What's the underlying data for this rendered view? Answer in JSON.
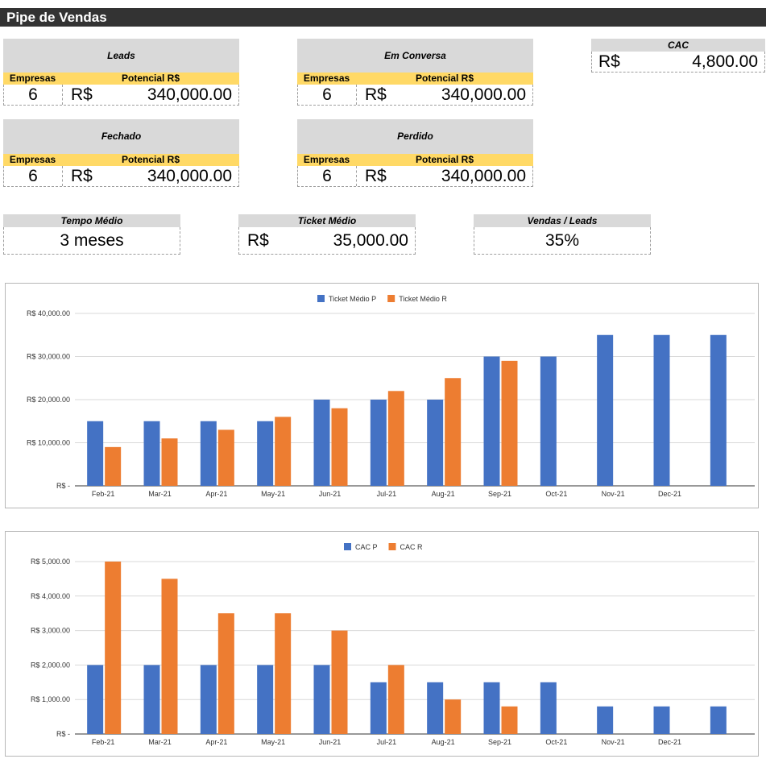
{
  "title": "Pipe de Vendas",
  "labels": {
    "empresas": "Empresas",
    "potencial": "Potencial R$"
  },
  "cards": [
    {
      "title": "Leads",
      "count": "6",
      "currency": "R$",
      "amount": "340,000.00"
    },
    {
      "title": "Em Conversa",
      "count": "6",
      "currency": "R$",
      "amount": "340,000.00"
    },
    {
      "title": "Fechado",
      "count": "6",
      "currency": "R$",
      "amount": "340,000.00"
    },
    {
      "title": "Perdido",
      "count": "6",
      "currency": "R$",
      "amount": "340,000.00"
    }
  ],
  "cac": {
    "title": "CAC",
    "currency": "R$",
    "amount": "4,800.00"
  },
  "kpis": {
    "tempo": {
      "title": "Tempo Médio",
      "value": "3 meses"
    },
    "ticket": {
      "title": "Ticket Médio",
      "currency": "R$",
      "amount": "35,000.00"
    },
    "vendas": {
      "title": "Vendas / Leads",
      "value": "35%"
    }
  },
  "colors": {
    "series_p": "#4472c4",
    "series_r": "#ed7d31",
    "title_bg": "#333333",
    "header_bg": "#d9d9d9",
    "sub_bg": "#ffd966"
  },
  "chart_data": [
    {
      "type": "bar",
      "categories": [
        "Feb-21",
        "Mar-21",
        "Apr-21",
        "May-21",
        "Jun-21",
        "Jul-21",
        "Aug-21",
        "Sep-21",
        "Oct-21",
        "Nov-21",
        "Dec-21",
        ""
      ],
      "series": [
        {
          "name": "Ticket Médio P",
          "values": [
            15000,
            15000,
            15000,
            15000,
            20000,
            20000,
            20000,
            30000,
            30000,
            35000,
            35000,
            35000
          ]
        },
        {
          "name": "Ticket Médio R",
          "values": [
            9000,
            11000,
            13000,
            16000,
            18000,
            22000,
            25000,
            29000,
            null,
            null,
            null,
            null
          ]
        }
      ],
      "ylim": [
        0,
        40000
      ],
      "yticks": [
        "R$ -",
        "R$ 10,000.00",
        "R$ 20,000.00",
        "R$ 30,000.00",
        "R$ 40,000.00"
      ],
      "legend": "top-center",
      "grid": true
    },
    {
      "type": "bar",
      "categories": [
        "Feb-21",
        "Mar-21",
        "Apr-21",
        "May-21",
        "Jun-21",
        "Jul-21",
        "Aug-21",
        "Sep-21",
        "Oct-21",
        "Nov-21",
        "Dec-21",
        ""
      ],
      "series": [
        {
          "name": "CAC P",
          "values": [
            2000,
            2000,
            2000,
            2000,
            2000,
            1500,
            1500,
            1500,
            1500,
            800,
            800,
            800
          ]
        },
        {
          "name": "CAC R",
          "values": [
            5000,
            4500,
            3500,
            3500,
            3000,
            2000,
            1000,
            800,
            null,
            null,
            null,
            null
          ]
        }
      ],
      "ylim": [
        0,
        5000
      ],
      "yticks": [
        "R$ -",
        "R$ 1,000.00",
        "R$ 2,000.00",
        "R$ 3,000.00",
        "R$ 4,000.00",
        "R$ 5,000.00"
      ],
      "legend": "top-center",
      "grid": true
    }
  ]
}
